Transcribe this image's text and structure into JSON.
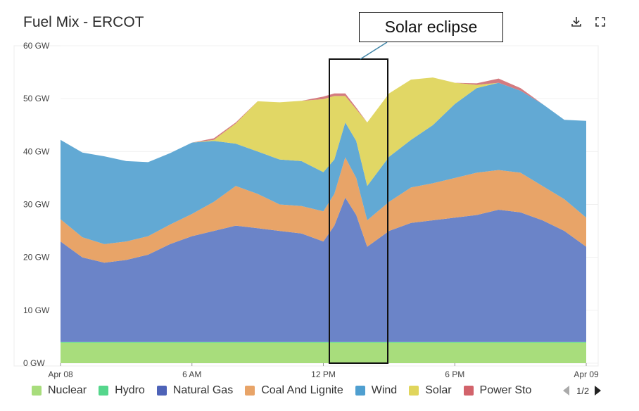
{
  "header": {
    "title": "Fuel Mix - ERCOT",
    "download_icon": "download-icon",
    "fullscreen_icon": "fullscreen-icon"
  },
  "annotation": {
    "label": "Solar eclipse"
  },
  "legend": {
    "page": "1/2",
    "items": [
      {
        "label": "Nuclear",
        "color": "#a8dd7c"
      },
      {
        "label": "Hydro",
        "color": "#55d68c"
      },
      {
        "label": "Natural Gas",
        "color": "#4e63b8"
      },
      {
        "label": "Coal And Lignite",
        "color": "#e8a468"
      },
      {
        "label": "Wind",
        "color": "#4f9fd0"
      },
      {
        "label": "Solar",
        "color": "#e0d55c"
      },
      {
        "label": "Power Storag",
        "color": "#d2636b"
      }
    ]
  },
  "chart_data": {
    "type": "area",
    "stacked": true,
    "title": "Fuel Mix - ERCOT",
    "unit": "GW",
    "ylim": [
      0,
      60
    ],
    "y_ticks": [
      "0 GW",
      "10 GW",
      "20 GW",
      "30 GW",
      "40 GW",
      "50 GW",
      "60 GW"
    ],
    "x_ticks": [
      "Apr 08",
      "6 AM",
      "12 PM",
      "6 PM",
      "Apr 09"
    ],
    "x_tick_hours": [
      0,
      6,
      12,
      18,
      24
    ],
    "x_hours": [
      0,
      1,
      2,
      3,
      4,
      5,
      6,
      7,
      8,
      9,
      10,
      11,
      12,
      12.5,
      13,
      13.5,
      14,
      15,
      16,
      17,
      18,
      19,
      20,
      21,
      22,
      23,
      24
    ],
    "series": [
      {
        "name": "Nuclear",
        "color": "#a8dd7c",
        "values": [
          3.9,
          3.9,
          3.9,
          3.9,
          3.9,
          3.9,
          3.9,
          3.9,
          3.9,
          3.9,
          3.9,
          3.9,
          3.9,
          3.9,
          3.9,
          3.9,
          3.9,
          3.9,
          3.9,
          3.9,
          3.9,
          3.9,
          3.9,
          3.9,
          3.9,
          3.9,
          3.9
        ]
      },
      {
        "name": "Hydro",
        "color": "#55d68c",
        "values": [
          0.1,
          0.1,
          0.1,
          0.1,
          0.1,
          0.1,
          0.1,
          0.1,
          0.1,
          0.1,
          0.1,
          0.1,
          0.1,
          0.1,
          0.1,
          0.1,
          0.1,
          0.1,
          0.1,
          0.1,
          0.1,
          0.1,
          0.1,
          0.1,
          0.1,
          0.1,
          0.1
        ]
      },
      {
        "name": "Natural Gas",
        "color": "#6b84c8",
        "values": [
          19,
          16,
          15,
          15.5,
          16.5,
          18.5,
          20,
          21,
          22,
          21.5,
          21,
          20.5,
          19,
          22,
          27.3,
          24,
          18,
          21,
          22.5,
          23,
          23.5,
          24,
          25,
          24.5,
          23,
          21,
          18
        ]
      },
      {
        "name": "Coal And Lignite",
        "color": "#e8a468",
        "values": [
          4.2,
          3.8,
          3.5,
          3.5,
          3.5,
          3.7,
          4.2,
          5.5,
          7.5,
          6.5,
          5,
          5.2,
          5.7,
          6,
          7.6,
          7,
          5,
          5.5,
          6.7,
          7,
          7.5,
          8,
          7.5,
          7.5,
          6.5,
          6,
          5.5
        ]
      },
      {
        "name": "Wind",
        "color": "#62a9d4",
        "values": [
          15,
          16,
          16.6,
          15.2,
          14,
          13.5,
          13.5,
          11.5,
          8,
          8,
          8.5,
          8.5,
          7.4,
          6.5,
          6.6,
          7,
          6.5,
          8.5,
          9,
          11,
          14,
          16,
          16.5,
          15.5,
          15.5,
          15,
          18.3
        ]
      },
      {
        "name": "Solar",
        "color": "#e1d765",
        "values": [
          0,
          0,
          0,
          0,
          0,
          0,
          0,
          0.2,
          3.8,
          9.5,
          10.8,
          11.4,
          13.8,
          12,
          5,
          6,
          12,
          12,
          11.4,
          9,
          4,
          0.6,
          0,
          0,
          0,
          0,
          0
        ]
      },
      {
        "name": "Power Storage",
        "color": "#d47b80",
        "values": [
          0,
          0,
          0,
          0,
          0,
          0,
          0,
          0.3,
          0.2,
          0,
          0,
          0,
          0.5,
          0.5,
          0.5,
          0.3,
          0,
          0,
          0,
          0,
          0,
          0.3,
          0.8,
          0.5,
          0,
          0,
          0
        ]
      }
    ],
    "legend_position": "bottom",
    "grid": true
  }
}
